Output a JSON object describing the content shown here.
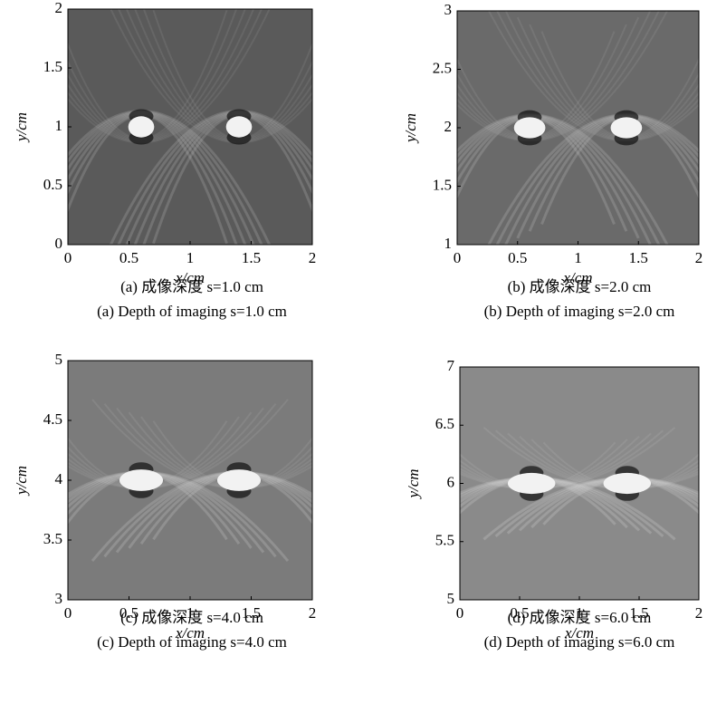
{
  "panels": [
    {
      "xlim": [
        0,
        2
      ],
      "ylim": [
        0,
        2
      ],
      "xticks": [
        0,
        0.5,
        1,
        1.5,
        2
      ],
      "yticks": [
        0,
        0.5,
        1,
        1.5,
        2
      ],
      "xlabel": "x/cm",
      "ylabel": "y/cm",
      "caption_cn": "(a) 成像深度 s=1.0 cm",
      "caption_en": "(a) Depth of imaging s=1.0 cm"
    },
    {
      "xlim": [
        0,
        2
      ],
      "ylim": [
        1,
        3
      ],
      "xticks": [
        0,
        0.5,
        1,
        1.5,
        2
      ],
      "yticks": [
        1,
        1.5,
        2,
        2.5,
        3
      ],
      "xlabel": "x/cm",
      "ylabel": "y/cm",
      "caption_cn": "(b) 成像深度 s=2.0 cm",
      "caption_en": "(b) Depth of imaging s=2.0 cm"
    },
    {
      "xlim": [
        0,
        2
      ],
      "ylim": [
        3,
        5
      ],
      "xticks": [
        0,
        0.5,
        1,
        1.5,
        2
      ],
      "yticks": [
        3,
        3.5,
        4,
        4.5,
        5
      ],
      "xlabel": "x/cm",
      "ylabel": "y/cm",
      "caption_cn": "(c) 成像深度 s=4.0 cm",
      "caption_en": "(c) Depth of imaging s=4.0 cm"
    },
    {
      "xlim": [
        0,
        2
      ],
      "ylim": [
        5,
        7
      ],
      "xticks": [
        0,
        0.5,
        1,
        1.5,
        2
      ],
      "yticks": [
        5,
        5.5,
        6,
        6.5,
        7
      ],
      "xlabel": "x/cm",
      "ylabel": "y/cm",
      "caption_cn": "(d) 成像深度 s=6.0 cm",
      "caption_en": "(d) Depth of imaging s=6.0 cm"
    }
  ]
}
